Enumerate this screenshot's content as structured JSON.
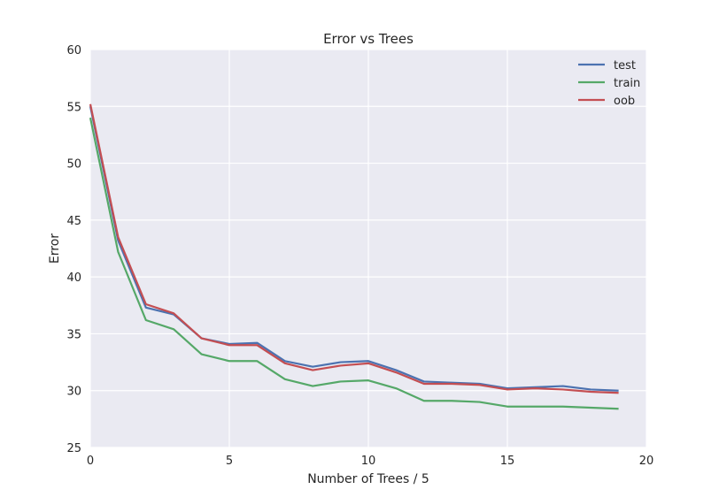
{
  "chart_data": {
    "type": "line",
    "title": "Error vs Trees",
    "xlabel": "Number of Trees / 5",
    "ylabel": "Error",
    "xlim": [
      0,
      20
    ],
    "ylim": [
      25,
      60
    ],
    "xticks": [
      0,
      5,
      10,
      15,
      20
    ],
    "yticks": [
      25,
      30,
      35,
      40,
      45,
      50,
      55,
      60
    ],
    "grid": true,
    "legend_position": "top-right",
    "x": [
      0,
      1,
      2,
      3,
      4,
      5,
      6,
      7,
      8,
      9,
      10,
      11,
      12,
      13,
      14,
      15,
      16,
      17,
      18,
      19
    ],
    "series": [
      {
        "name": "test",
        "color": "#4c72b0",
        "values": [
          55.0,
          43.2,
          37.3,
          36.7,
          34.6,
          34.1,
          34.2,
          32.6,
          32.1,
          32.5,
          32.6,
          31.8,
          30.8,
          30.7,
          30.6,
          30.2,
          30.3,
          30.4,
          30.1,
          30.0
        ]
      },
      {
        "name": "train",
        "color": "#55a868",
        "values": [
          54.0,
          42.2,
          36.2,
          35.4,
          33.2,
          32.6,
          32.6,
          31.0,
          30.4,
          30.8,
          30.9,
          30.2,
          29.1,
          29.1,
          29.0,
          28.6,
          28.6,
          28.6,
          28.5,
          28.4
        ]
      },
      {
        "name": "oob",
        "color": "#c44e52",
        "values": [
          55.2,
          43.5,
          37.6,
          36.8,
          34.6,
          34.0,
          34.0,
          32.4,
          31.8,
          32.2,
          32.4,
          31.6,
          30.6,
          30.6,
          30.5,
          30.1,
          30.2,
          30.1,
          29.9,
          29.8
        ]
      }
    ]
  }
}
